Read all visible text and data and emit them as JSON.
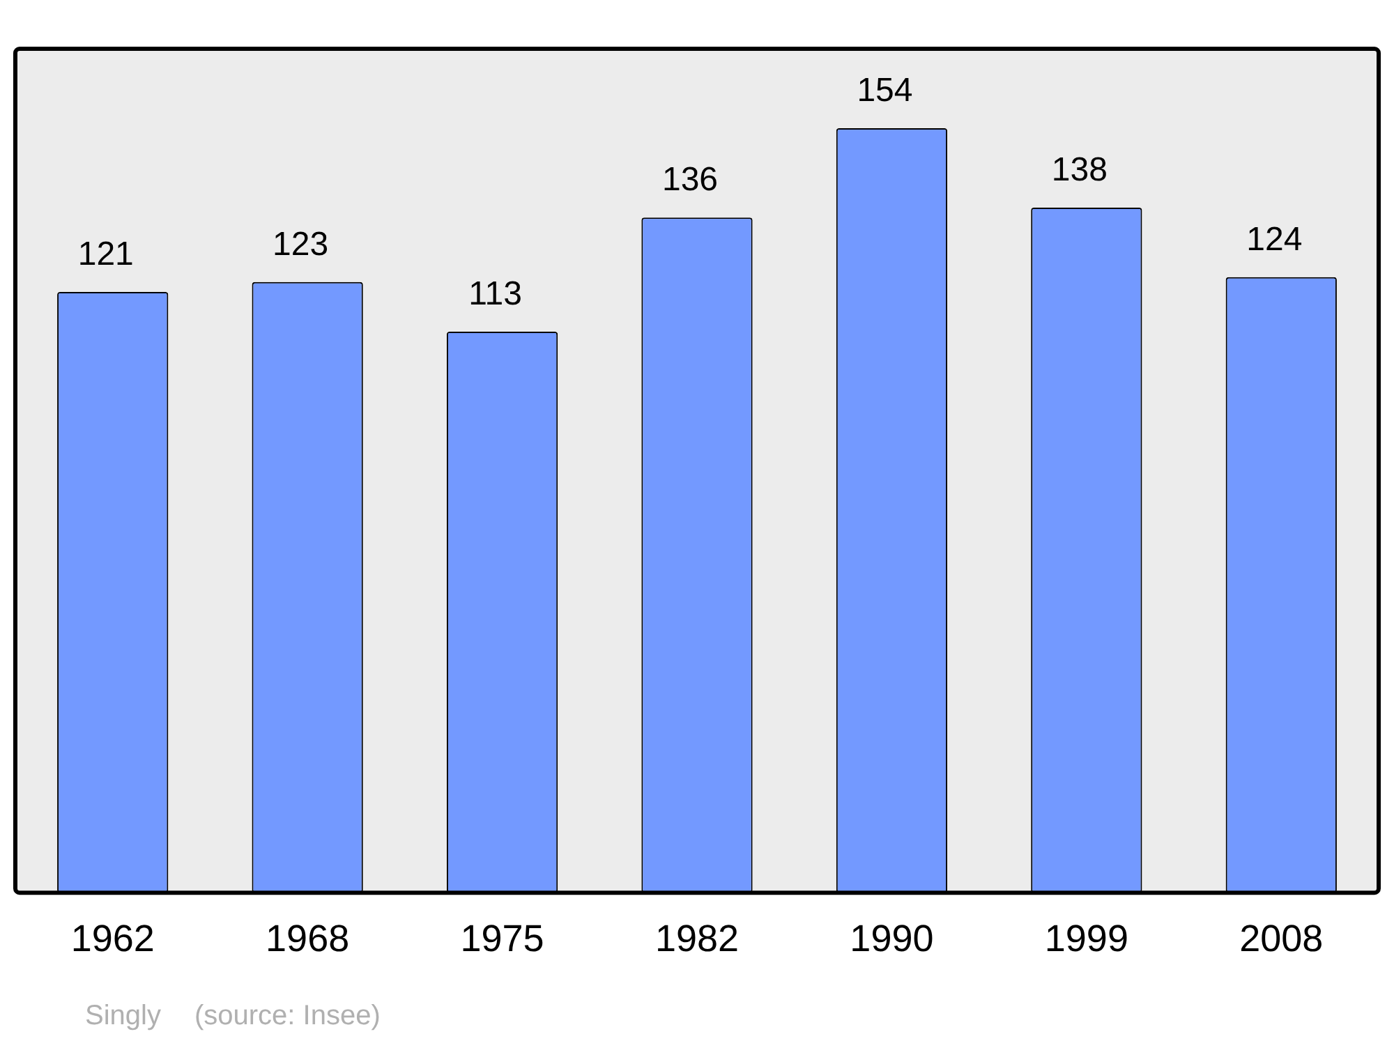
{
  "chart_data": {
    "type": "bar",
    "categories": [
      "1962",
      "1968",
      "1975",
      "1982",
      "1990",
      "1999",
      "2008"
    ],
    "values": [
      121,
      123,
      113,
      136,
      154,
      138,
      124
    ],
    "color": "#7399ff",
    "ylim": [
      0,
      170
    ],
    "data_labels": true,
    "grid": false,
    "legend": false,
    "annotations": [
      "Singly",
      "(source: Insee)"
    ]
  }
}
